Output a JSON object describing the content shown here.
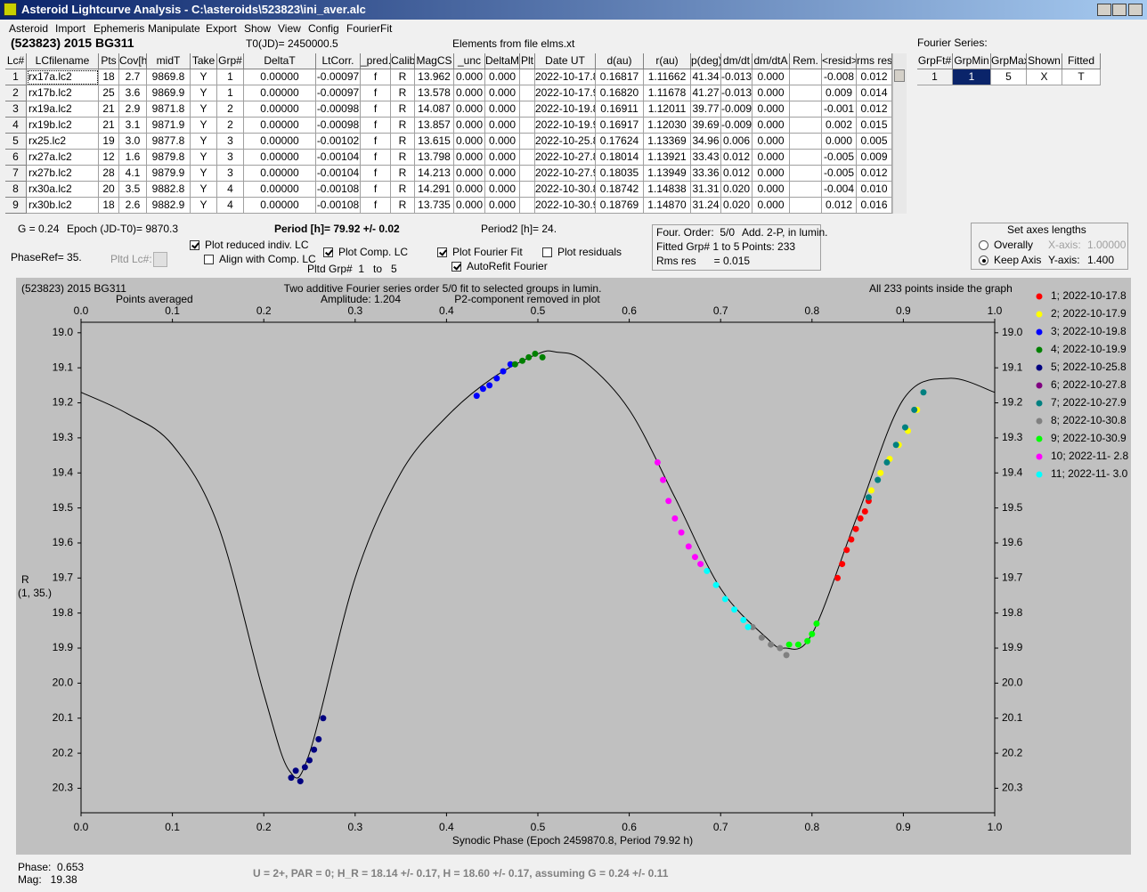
{
  "title_bar": {
    "title": "Asteroid Lightcurve Analysis - C:\\asteroids\\523823\\ini_aver.alc"
  },
  "menu": [
    "Asteroid",
    "Import",
    "Ephemeris",
    "Manipulate",
    "Export",
    "Show",
    "View",
    "Config",
    "FourierFit"
  ],
  "header": {
    "object": "(523823) 2015 BG311",
    "t0": "T0(JD)= 2450000.5",
    "elements": "Elements from file elms.xt",
    "fourier_label": "Fourier Series:"
  },
  "table": {
    "columns": [
      "Lc#",
      "LCfilename",
      "Pts",
      "Cov[h]",
      "midT",
      "Take",
      "Grp#",
      "DeltaT",
      "LtCorr.",
      "_pred.",
      "Calib.",
      "MagCS",
      "_unc",
      "DeltaM",
      "Plt",
      "Date UT",
      "d(au)",
      "r(au)",
      "p(deg)",
      "dm/dt",
      "dm/dtA",
      "Rem.",
      "<resid>",
      "rms res"
    ],
    "rows": [
      [
        "1",
        "rx17a.lc2",
        "18",
        "2.7",
        "9869.8",
        "Y",
        "1",
        "0.00000",
        "-0.00097",
        "f",
        "R",
        "13.962",
        "0.000",
        "0.000",
        null,
        "2022-10-17.8",
        "0.16817",
        "1.11662",
        "41.34",
        "-0.013",
        "0.000",
        null,
        "-0.008",
        "0.012"
      ],
      [
        "2",
        "rx17b.lc2",
        "25",
        "3.6",
        "9869.9",
        "Y",
        "1",
        "0.00000",
        "-0.00097",
        "f",
        "R",
        "13.578",
        "0.000",
        "0.000",
        null,
        "2022-10-17.9",
        "0.16820",
        "1.11678",
        "41.27",
        "-0.013",
        "0.000",
        null,
        "0.009",
        "0.014"
      ],
      [
        "3",
        "rx19a.lc2",
        "21",
        "2.9",
        "9871.8",
        "Y",
        "2",
        "0.00000",
        "-0.00098",
        "f",
        "R",
        "14.087",
        "0.000",
        "0.000",
        null,
        "2022-10-19.8",
        "0.16911",
        "1.12011",
        "39.77",
        "-0.009",
        "0.000",
        null,
        "-0.001",
        "0.012"
      ],
      [
        "4",
        "rx19b.lc2",
        "21",
        "3.1",
        "9871.9",
        "Y",
        "2",
        "0.00000",
        "-0.00098",
        "f",
        "R",
        "13.857",
        "0.000",
        "0.000",
        null,
        "2022-10-19.9",
        "0.16917",
        "1.12030",
        "39.69",
        "-0.009",
        "0.000",
        null,
        "0.002",
        "0.015"
      ],
      [
        "5",
        "rx25.lc2",
        "19",
        "3.0",
        "9877.8",
        "Y",
        "3",
        "0.00000",
        "-0.00102",
        "f",
        "R",
        "13.615",
        "0.000",
        "0.000",
        null,
        "2022-10-25.8",
        "0.17624",
        "1.13369",
        "34.96",
        "0.006",
        "0.000",
        null,
        "0.000",
        "0.005"
      ],
      [
        "6",
        "rx27a.lc2",
        "12",
        "1.6",
        "9879.8",
        "Y",
        "3",
        "0.00000",
        "-0.00104",
        "f",
        "R",
        "13.798",
        "0.000",
        "0.000",
        null,
        "2022-10-27.8",
        "0.18014",
        "1.13921",
        "33.43",
        "0.012",
        "0.000",
        null,
        "-0.005",
        "0.009"
      ],
      [
        "7",
        "rx27b.lc2",
        "28",
        "4.1",
        "9879.9",
        "Y",
        "3",
        "0.00000",
        "-0.00104",
        "f",
        "R",
        "14.213",
        "0.000",
        "0.000",
        null,
        "2022-10-27.9",
        "0.18035",
        "1.13949",
        "33.36",
        "0.012",
        "0.000",
        null,
        "-0.005",
        "0.012"
      ],
      [
        "8",
        "rx30a.lc2",
        "20",
        "3.5",
        "9882.8",
        "Y",
        "4",
        "0.00000",
        "-0.00108",
        "f",
        "R",
        "14.291",
        "0.000",
        "0.000",
        null,
        "2022-10-30.8",
        "0.18742",
        "1.14838",
        "31.31",
        "0.020",
        "0.000",
        null,
        "-0.004",
        "0.010"
      ],
      [
        "9",
        "rx30b.lc2",
        "18",
        "2.6",
        "9882.9",
        "Y",
        "4",
        "0.00000",
        "-0.00108",
        "f",
        "R",
        "13.735",
        "0.000",
        "0.000",
        null,
        "2022-10-30.9",
        "0.18769",
        "1.14870",
        "31.24",
        "0.020",
        "0.000",
        null,
        "0.012",
        "0.016"
      ]
    ]
  },
  "fourier_table": {
    "columns": [
      "GrpFt#",
      "GrpMin",
      "GrpMax",
      "Shown",
      "Fitted"
    ],
    "rows": [
      [
        "1",
        "1",
        "5",
        "X",
        "T"
      ]
    ]
  },
  "controls": {
    "g": "G = 0.24",
    "epoch": "Epoch (JD-T0)= 9870.3",
    "period": "Period [h]= 79.92 +/- 0.02",
    "period2": "Period2 [h]= 24.",
    "phaseref": "PhaseRef= 35.",
    "pltd_lc": "Pltd Lc#:",
    "pltd_grp": "Pltd Grp#  1   to   5",
    "checkboxes": [
      {
        "label": "Plot reduced indiv. LC",
        "checked": true
      },
      {
        "label": "Align with Comp. LC",
        "checked": false
      },
      {
        "label": "Plot Comp. LC",
        "checked": true
      },
      {
        "label": "Plot Fourier Fit",
        "checked": true
      },
      {
        "label": "AutoRefit Fourier",
        "checked": true
      },
      {
        "label": "Plot residuals",
        "checked": false
      }
    ]
  },
  "info_box": [
    "Four. Order:  5/0",
    "Add. 2-P, in lumin.",
    "Fitted Grp# 1 to 5",
    "Points: 233",
    "Rms res      = 0.015"
  ],
  "axes_box": {
    "title": "Set axes lengths",
    "radios": [
      {
        "label": "Overally",
        "selected": false
      },
      {
        "label": "Keep Axis",
        "selected": true
      }
    ],
    "x_label": "X-axis:",
    "x_value": "1.00000",
    "y_label": "Y-axis:",
    "y_value": "1.400"
  },
  "chart_data": {
    "type": "scatter",
    "title": "(523823) 2015 BG311",
    "subtitle": "Points averaged",
    "annotations": [
      "Two additive Fourier series order 5/0 fit to selected groups in lumin.",
      "Amplitude: 1.204",
      "P2-component removed in plot",
      "All 233 points inside the graph"
    ],
    "y_label": "R",
    "y_label2": "(1, 35.)",
    "x_label": "Synodic Phase (Epoch 2459870.8, Period 79.92 h)",
    "xlim": [
      0,
      1
    ],
    "ylim": [
      18.97,
      20.37
    ],
    "y_inverted": true,
    "xticks": [
      {
        "value": 0,
        "label": "0.0"
      },
      0.1,
      0.2,
      0.3,
      0.4,
      0.5,
      0.6,
      0.7,
      0.8,
      0.9,
      {
        "value": 1,
        "label": "1.0"
      }
    ],
    "yticks": [
      {
        "value": 19,
        "label": "19.0"
      },
      19.1,
      19.2,
      19.3,
      19.4,
      19.5,
      19.6,
      19.7,
      19.8,
      19.9,
      {
        "value": 20,
        "label": "20.0"
      },
      20.1,
      20.2,
      20.3
    ],
    "curve": {
      "color": "#000000",
      "x": [
        0,
        0.05,
        0.1,
        0.15,
        0.2,
        0.228,
        0.25,
        0.3,
        0.35,
        0.4,
        0.45,
        0.5,
        0.52,
        0.55,
        0.6,
        0.65,
        0.7,
        0.75,
        0.77,
        0.8,
        0.85,
        0.9,
        0.95,
        1
      ],
      "y": [
        19.17,
        19.23,
        19.32,
        19.55,
        20.03,
        20.25,
        20.2,
        19.7,
        19.4,
        19.24,
        19.13,
        19.06,
        19.055,
        19.08,
        19.22,
        19.47,
        19.73,
        19.87,
        19.9,
        19.86,
        19.52,
        19.19,
        19.13,
        19.17
      ]
    },
    "series": [
      {
        "name": "1; 2022-10-17.8",
        "color": "#ff0000",
        "x": [
          0.828,
          0.833,
          0.838,
          0.843,
          0.848,
          0.853,
          0.858,
          0.862
        ],
        "y": [
          19.7,
          19.66,
          19.62,
          19.59,
          19.56,
          19.53,
          19.51,
          19.48
        ]
      },
      {
        "name": "2; 2022-10-17.9",
        "color": "#ffff00",
        "x": [
          0.865,
          0.875,
          0.885,
          0.895,
          0.905,
          0.915
        ],
        "y": [
          19.45,
          19.4,
          19.36,
          19.32,
          19.28,
          19.22
        ]
      },
      {
        "name": "3; 2022-10-19.8",
        "color": "#0000ff",
        "x": [
          0.433,
          0.44,
          0.447,
          0.455,
          0.462,
          0.47
        ],
        "y": [
          19.18,
          19.16,
          19.15,
          19.13,
          19.11,
          19.09
        ]
      },
      {
        "name": "4; 2022-10-19.9",
        "color": "#008000",
        "x": [
          0.475,
          0.483,
          0.49,
          0.497,
          0.505
        ],
        "y": [
          19.09,
          19.08,
          19.07,
          19.06,
          19.07
        ]
      },
      {
        "name": "5; 2022-10-25.8",
        "color": "#000080",
        "x": [
          0.23,
          0.235,
          0.24,
          0.245,
          0.25,
          0.255,
          0.26,
          0.265
        ],
        "y": [
          20.27,
          20.25,
          20.28,
          20.24,
          20.22,
          20.19,
          20.16,
          20.1
        ]
      },
      {
        "name": "6; 2022-10-27.8",
        "color": "#800080",
        "x": [],
        "y": []
      },
      {
        "name": "7; 2022-10-27.9",
        "color": "#008080",
        "x": [
          0.862,
          0.872,
          0.882,
          0.892,
          0.902,
          0.912,
          0.922
        ],
        "y": [
          19.47,
          19.42,
          19.37,
          19.32,
          19.27,
          19.22,
          19.17
        ]
      },
      {
        "name": "8; 2022-10-30.8",
        "color": "#808080",
        "x": [
          0.735,
          0.745,
          0.755,
          0.765,
          0.772
        ],
        "y": [
          19.84,
          19.87,
          19.89,
          19.9,
          19.92
        ]
      },
      {
        "name": "9; 2022-10-30.9",
        "color": "#00ff00",
        "x": [
          0.775,
          0.785,
          0.795,
          0.8,
          0.805
        ],
        "y": [
          19.89,
          19.89,
          19.88,
          19.86,
          19.83
        ]
      },
      {
        "name": "10; 2022-11- 2.8",
        "color": "#ff00ff",
        "x": [
          0.631,
          0.637,
          0.643,
          0.65,
          0.657,
          0.665,
          0.672,
          0.678
        ],
        "y": [
          19.37,
          19.42,
          19.48,
          19.53,
          19.57,
          19.61,
          19.64,
          19.66
        ]
      },
      {
        "name": "11; 2022-11- 3.0",
        "color": "#00ffff",
        "x": [
          0.685,
          0.695,
          0.705,
          0.715,
          0.725,
          0.73
        ],
        "y": [
          19.68,
          19.72,
          19.76,
          19.79,
          19.82,
          19.84
        ]
      }
    ]
  },
  "status": {
    "phase": "Phase:  0.653",
    "mag": "Mag:   19.38",
    "result": "U = 2+, PAR = 0; H_R = 18.14 +/- 0.17, H = 18.60 +/- 0.17, assuming G = 0.24 +/- 0.11"
  }
}
